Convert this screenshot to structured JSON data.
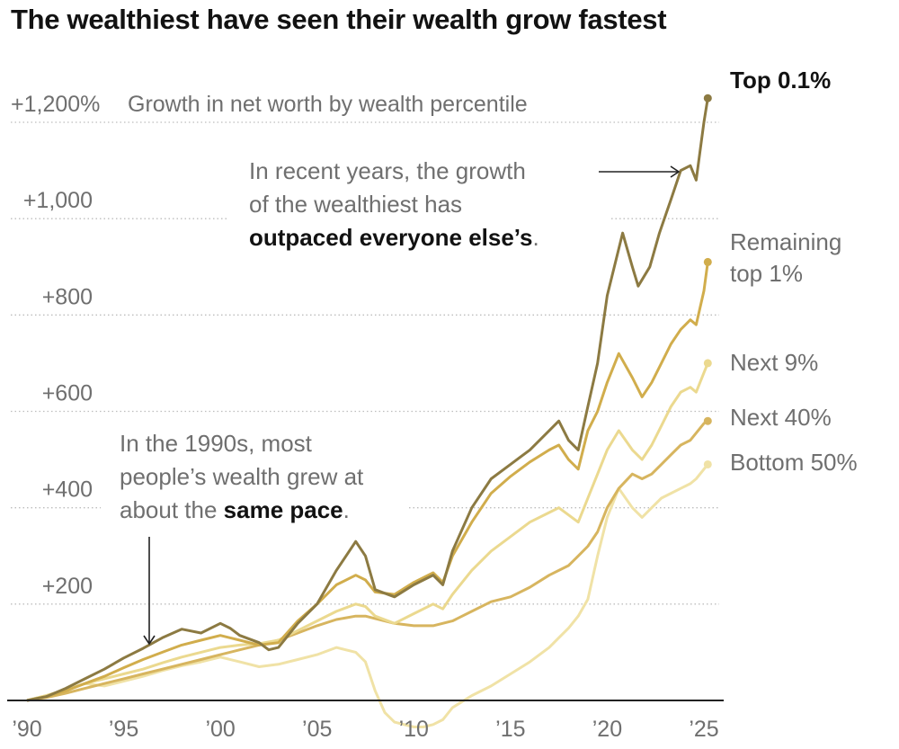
{
  "chart_data": {
    "type": "line",
    "title": "The wealthiest have seen their wealth grow fastest",
    "ylabel": "Growth in net worth by wealth percentile",
    "xlabel": "",
    "xlim": [
      1990,
      2025.3
    ],
    "ylim": [
      0,
      1200
    ],
    "grid": "horizontal-dotted",
    "yticks": [
      {
        "value": 200,
        "label": "+200"
      },
      {
        "value": 400,
        "label": "+400"
      },
      {
        "value": 600,
        "label": "+600"
      },
      {
        "value": 800,
        "label": "+800"
      },
      {
        "value": 1000,
        "label": "+1,000"
      },
      {
        "value": 1200,
        "label": "+1,200%"
      }
    ],
    "xticks": [
      {
        "value": 1990,
        "label": "’90"
      },
      {
        "value": 1995,
        "label": "’95"
      },
      {
        "value": 2000,
        "label": "’00"
      },
      {
        "value": 2005,
        "label": "’05"
      },
      {
        "value": 2010,
        "label": "’10"
      },
      {
        "value": 2015,
        "label": "’15"
      },
      {
        "value": 2020,
        "label": "’20"
      },
      {
        "value": 2025,
        "label": "’25"
      }
    ],
    "series": [
      {
        "name": "Top 0.1%",
        "label_lines": [
          "Top 0.1%"
        ],
        "bold": true,
        "color": "#8c7a42",
        "points": [
          [
            1990,
            0
          ],
          [
            1991,
            8
          ],
          [
            1992,
            25
          ],
          [
            1993,
            45
          ],
          [
            1994,
            65
          ],
          [
            1995,
            88
          ],
          [
            1996,
            108
          ],
          [
            1997,
            130
          ],
          [
            1998,
            148
          ],
          [
            1999,
            140
          ],
          [
            2000,
            160
          ],
          [
            2000.5,
            150
          ],
          [
            2001,
            135
          ],
          [
            2002,
            120
          ],
          [
            2002.5,
            105
          ],
          [
            2003,
            110
          ],
          [
            2004,
            160
          ],
          [
            2005,
            200
          ],
          [
            2006,
            270
          ],
          [
            2007,
            330
          ],
          [
            2007.5,
            300
          ],
          [
            2008,
            230
          ],
          [
            2009,
            215
          ],
          [
            2010,
            240
          ],
          [
            2011,
            260
          ],
          [
            2011.5,
            240
          ],
          [
            2012,
            310
          ],
          [
            2013,
            400
          ],
          [
            2014,
            460
          ],
          [
            2015,
            490
          ],
          [
            2016,
            520
          ],
          [
            2017,
            560
          ],
          [
            2017.5,
            580
          ],
          [
            2018,
            540
          ],
          [
            2018.5,
            520
          ],
          [
            2019,
            610
          ],
          [
            2019.5,
            700
          ],
          [
            2020,
            840
          ],
          [
            2020.8,
            970
          ],
          [
            2021.3,
            900
          ],
          [
            2021.6,
            860
          ],
          [
            2022.2,
            900
          ],
          [
            2022.7,
            970
          ],
          [
            2023.3,
            1040
          ],
          [
            2023.8,
            1100
          ],
          [
            2024.3,
            1110
          ],
          [
            2024.6,
            1080
          ],
          [
            2025,
            1200
          ],
          [
            2025.2,
            1250
          ]
        ]
      },
      {
        "name": "Remaining top 1%",
        "label_lines": [
          "Remaining",
          "top 1%"
        ],
        "bold": false,
        "color": "#d1ad4c",
        "points": [
          [
            1990,
            0
          ],
          [
            1991,
            8
          ],
          [
            1992,
            20
          ],
          [
            1993,
            35
          ],
          [
            1994,
            50
          ],
          [
            1995,
            68
          ],
          [
            1996,
            85
          ],
          [
            1997,
            100
          ],
          [
            1998,
            115
          ],
          [
            1999,
            125
          ],
          [
            2000,
            135
          ],
          [
            2001,
            125
          ],
          [
            2002,
            115
          ],
          [
            2003,
            120
          ],
          [
            2004,
            165
          ],
          [
            2005,
            200
          ],
          [
            2006,
            240
          ],
          [
            2007,
            260
          ],
          [
            2007.5,
            250
          ],
          [
            2008,
            225
          ],
          [
            2009,
            220
          ],
          [
            2010,
            245
          ],
          [
            2011,
            265
          ],
          [
            2011.5,
            245
          ],
          [
            2012,
            300
          ],
          [
            2013,
            370
          ],
          [
            2014,
            430
          ],
          [
            2015,
            465
          ],
          [
            2016,
            495
          ],
          [
            2017,
            520
          ],
          [
            2017.5,
            530
          ],
          [
            2018,
            500
          ],
          [
            2018.5,
            480
          ],
          [
            2019,
            560
          ],
          [
            2019.5,
            600
          ],
          [
            2020,
            660
          ],
          [
            2020.6,
            720
          ],
          [
            2021.3,
            670
          ],
          [
            2021.8,
            630
          ],
          [
            2022.3,
            660
          ],
          [
            2022.8,
            700
          ],
          [
            2023.3,
            740
          ],
          [
            2023.8,
            770
          ],
          [
            2024.3,
            790
          ],
          [
            2024.6,
            780
          ],
          [
            2025,
            850
          ],
          [
            2025.2,
            910
          ]
        ]
      },
      {
        "name": "Next 9%",
        "label_lines": [
          "Next 9%"
        ],
        "bold": false,
        "color": "#ebd98f",
        "points": [
          [
            1990,
            0
          ],
          [
            1991,
            10
          ],
          [
            1992,
            22
          ],
          [
            1993,
            35
          ],
          [
            1994,
            45
          ],
          [
            1995,
            55
          ],
          [
            1996,
            65
          ],
          [
            1997,
            78
          ],
          [
            1998,
            90
          ],
          [
            1999,
            100
          ],
          [
            2000,
            110
          ],
          [
            2001,
            115
          ],
          [
            2002,
            118
          ],
          [
            2003,
            125
          ],
          [
            2004,
            145
          ],
          [
            2005,
            165
          ],
          [
            2006,
            185
          ],
          [
            2007,
            200
          ],
          [
            2007.5,
            195
          ],
          [
            2008,
            175
          ],
          [
            2009,
            160
          ],
          [
            2010,
            180
          ],
          [
            2011,
            200
          ],
          [
            2011.5,
            190
          ],
          [
            2012,
            220
          ],
          [
            2013,
            270
          ],
          [
            2014,
            310
          ],
          [
            2015,
            340
          ],
          [
            2016,
            370
          ],
          [
            2017,
            390
          ],
          [
            2017.5,
            400
          ],
          [
            2018,
            385
          ],
          [
            2018.5,
            370
          ],
          [
            2019,
            420
          ],
          [
            2019.5,
            470
          ],
          [
            2020,
            520
          ],
          [
            2020.6,
            560
          ],
          [
            2021.3,
            520
          ],
          [
            2021.8,
            500
          ],
          [
            2022.3,
            530
          ],
          [
            2022.8,
            570
          ],
          [
            2023.3,
            610
          ],
          [
            2023.8,
            640
          ],
          [
            2024.3,
            650
          ],
          [
            2024.6,
            640
          ],
          [
            2025,
            680
          ],
          [
            2025.2,
            700
          ]
        ]
      },
      {
        "name": "Next 40%",
        "label_lines": [
          "Next 40%"
        ],
        "bold": false,
        "color": "#d7b55f",
        "points": [
          [
            1990,
            0
          ],
          [
            1991,
            6
          ],
          [
            1992,
            15
          ],
          [
            1993,
            25
          ],
          [
            1994,
            35
          ],
          [
            1995,
            45
          ],
          [
            1996,
            55
          ],
          [
            1997,
            65
          ],
          [
            1998,
            75
          ],
          [
            1999,
            85
          ],
          [
            2000,
            95
          ],
          [
            2001,
            105
          ],
          [
            2002,
            115
          ],
          [
            2003,
            125
          ],
          [
            2004,
            140
          ],
          [
            2005,
            155
          ],
          [
            2006,
            168
          ],
          [
            2007,
            175
          ],
          [
            2007.5,
            175
          ],
          [
            2008,
            170
          ],
          [
            2009,
            160
          ],
          [
            2010,
            155
          ],
          [
            2011,
            155
          ],
          [
            2012,
            165
          ],
          [
            2013,
            185
          ],
          [
            2014,
            205
          ],
          [
            2015,
            215
          ],
          [
            2016,
            235
          ],
          [
            2017,
            260
          ],
          [
            2018,
            280
          ],
          [
            2018.5,
            300
          ],
          [
            2019,
            320
          ],
          [
            2019.5,
            350
          ],
          [
            2020,
            400
          ],
          [
            2020.6,
            440
          ],
          [
            2021.3,
            470
          ],
          [
            2021.8,
            460
          ],
          [
            2022.3,
            470
          ],
          [
            2022.8,
            490
          ],
          [
            2023.3,
            510
          ],
          [
            2023.8,
            530
          ],
          [
            2024.3,
            540
          ],
          [
            2024.6,
            555
          ],
          [
            2025,
            575
          ],
          [
            2025.2,
            580
          ]
        ]
      },
      {
        "name": "Bottom 50%",
        "label_lines": [
          "Bottom 50%"
        ],
        "bold": false,
        "color": "#f0e2a6",
        "points": [
          [
            1990,
            0
          ],
          [
            1991,
            10
          ],
          [
            1992,
            22
          ],
          [
            1993,
            35
          ],
          [
            1994,
            30
          ],
          [
            1995,
            40
          ],
          [
            1996,
            50
          ],
          [
            1997,
            62
          ],
          [
            1998,
            72
          ],
          [
            1999,
            80
          ],
          [
            2000,
            90
          ],
          [
            2001,
            80
          ],
          [
            2002,
            70
          ],
          [
            2003,
            75
          ],
          [
            2004,
            85
          ],
          [
            2005,
            95
          ],
          [
            2006,
            110
          ],
          [
            2007,
            100
          ],
          [
            2007.5,
            80
          ],
          [
            2008,
            20
          ],
          [
            2008.5,
            -25
          ],
          [
            2009,
            -45
          ],
          [
            2010,
            -55
          ],
          [
            2010.5,
            -55
          ],
          [
            2011,
            -50
          ],
          [
            2011.5,
            -40
          ],
          [
            2012,
            -15
          ],
          [
            2013,
            10
          ],
          [
            2014,
            30
          ],
          [
            2015,
            55
          ],
          [
            2016,
            80
          ],
          [
            2017,
            110
          ],
          [
            2017.5,
            130
          ],
          [
            2018,
            150
          ],
          [
            2018.5,
            175
          ],
          [
            2019,
            210
          ],
          [
            2019.5,
            300
          ],
          [
            2020,
            380
          ],
          [
            2020.6,
            440
          ],
          [
            2021.3,
            400
          ],
          [
            2021.8,
            380
          ],
          [
            2022.3,
            400
          ],
          [
            2022.8,
            420
          ],
          [
            2023.3,
            430
          ],
          [
            2023.8,
            440
          ],
          [
            2024.3,
            450
          ],
          [
            2024.6,
            460
          ],
          [
            2025,
            480
          ],
          [
            2025.2,
            490
          ]
        ]
      }
    ],
    "annotations": [
      {
        "name": "recent-years-note",
        "lines": [
          [
            {
              "text": "In recent years, the growth",
              "bold": false
            }
          ],
          [
            {
              "text": "of the wealthiest has",
              "bold": false
            }
          ],
          [
            {
              "text": "outpaced everyone else’s",
              "bold": true
            },
            {
              "text": ".",
              "bold": false
            }
          ]
        ],
        "arrow": "right"
      },
      {
        "name": "1990s-note",
        "lines": [
          [
            {
              "text": "In the 1990s, most",
              "bold": false
            }
          ],
          [
            {
              "text": "people’s wealth grew at",
              "bold": false
            }
          ],
          [
            {
              "text": "about the ",
              "bold": false
            },
            {
              "text": "same pace",
              "bold": true
            },
            {
              "text": ".",
              "bold": false
            }
          ]
        ],
        "arrow": "down"
      }
    ]
  }
}
